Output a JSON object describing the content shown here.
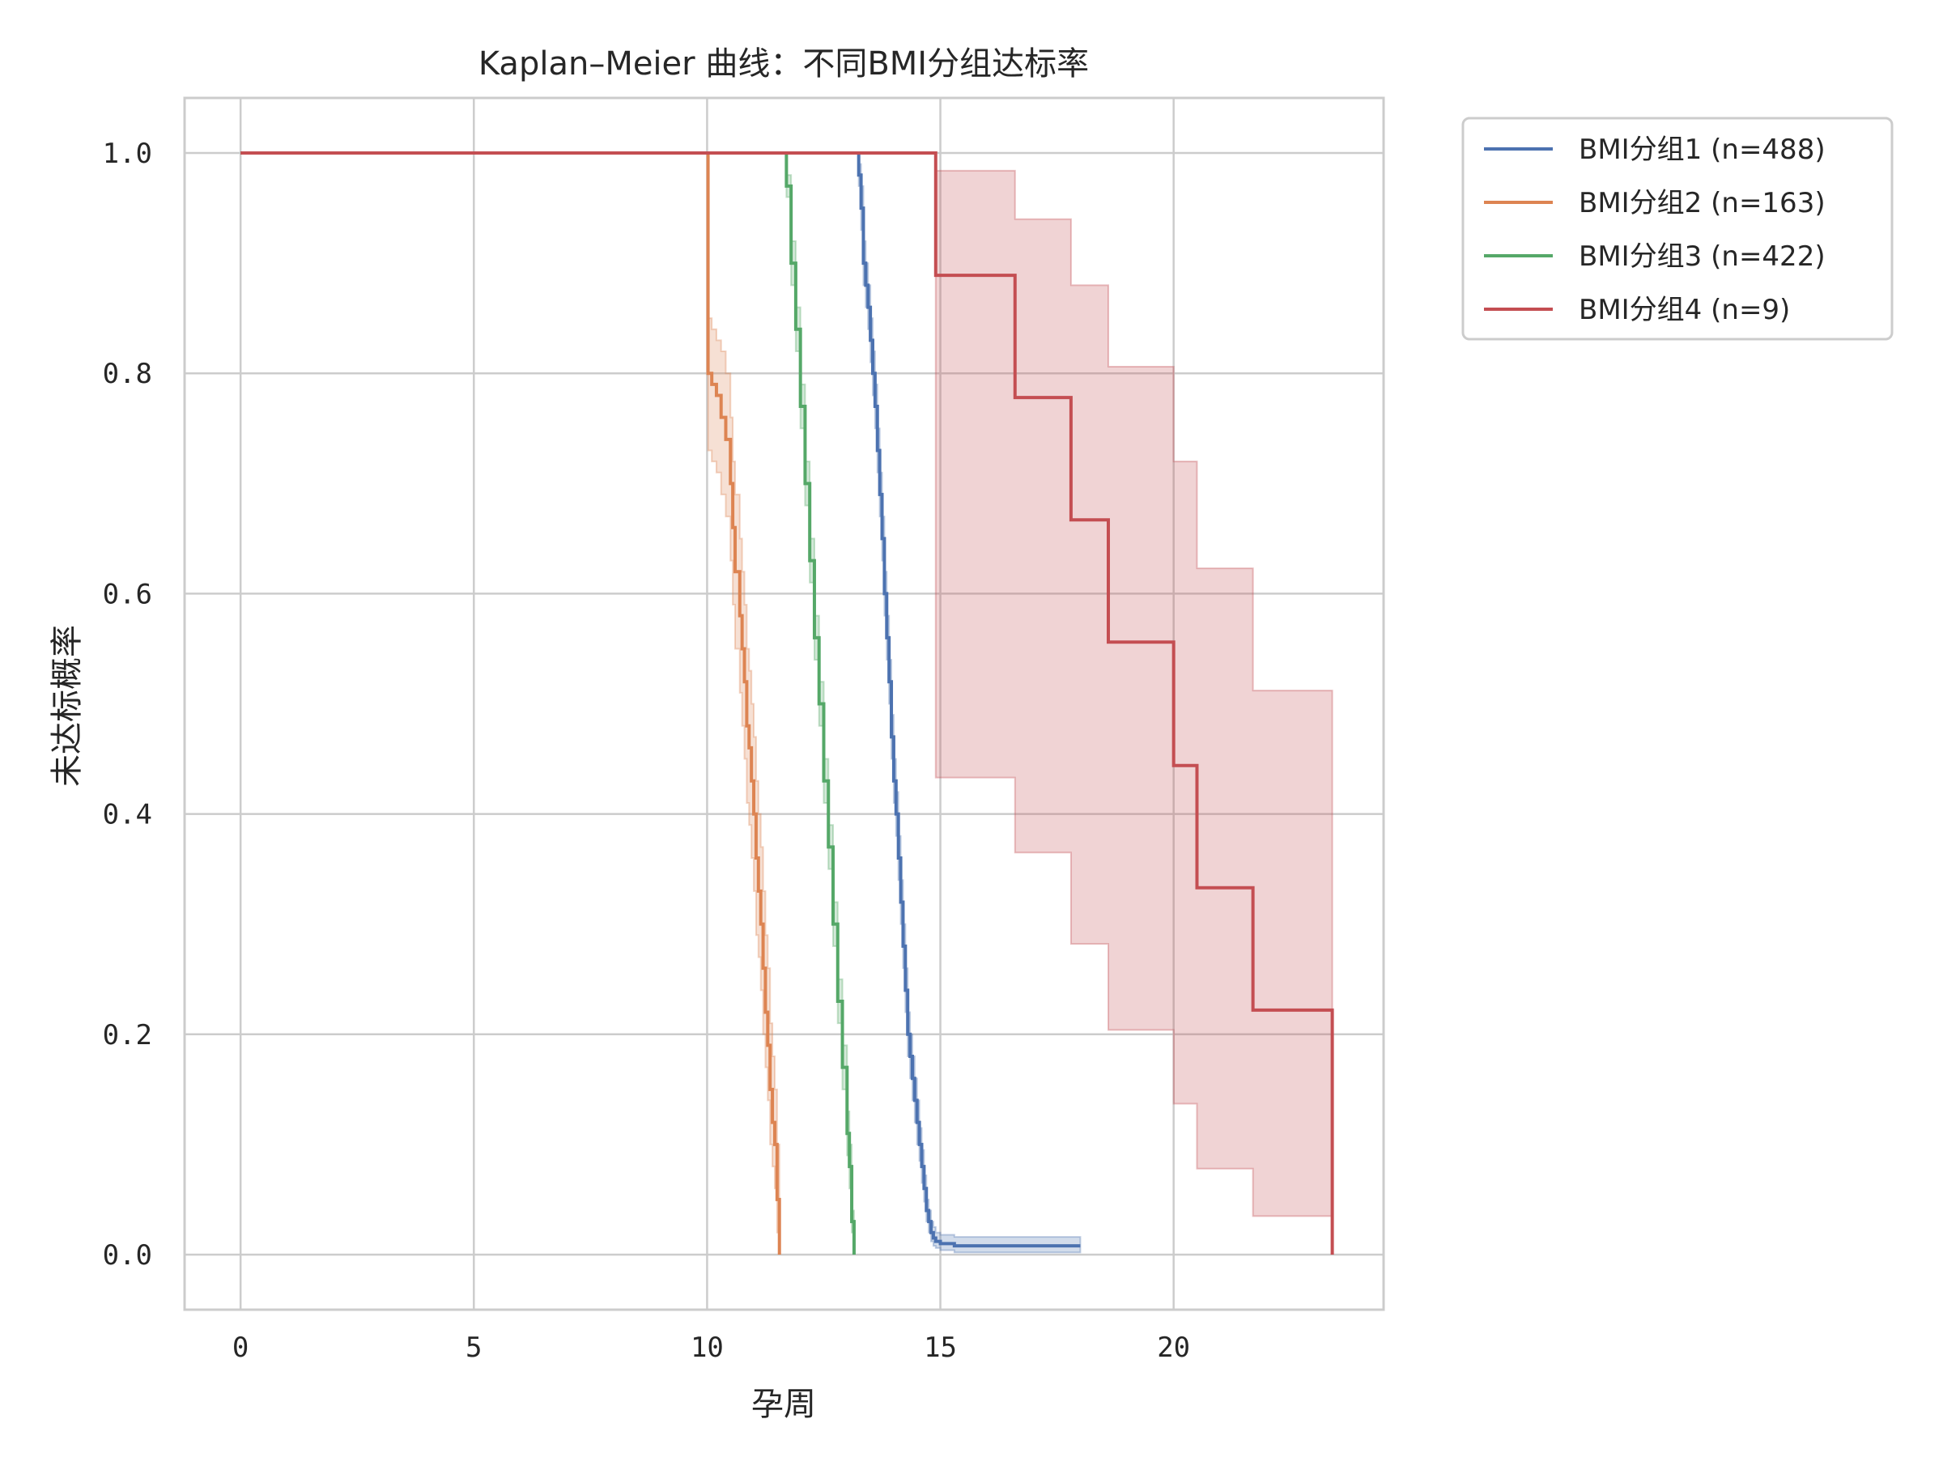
{
  "chart_data": {
    "type": "line",
    "title": "Kaplan–Meier 曲线：不同BMI分组达标率",
    "xlabel": "孕周",
    "ylabel": "未达标概率",
    "xlim": [
      -1.2,
      24.5
    ],
    "ylim": [
      -0.05,
      1.05
    ],
    "x_ticks": [
      "0",
      "5",
      "10",
      "15",
      "20"
    ],
    "y_ticks": [
      "0.0",
      "0.2",
      "0.4",
      "0.6",
      "0.8",
      "1.0"
    ],
    "grid": true,
    "legend_position": "outside-top-right",
    "colors": {
      "BMI分组1": "#4c72b0",
      "BMI分组2": "#dd8452",
      "BMI分组3": "#55a868",
      "BMI分组4": "#c44e52"
    },
    "series": [
      {
        "name": "BMI分组1 (n=488)",
        "color": "#4c72b0",
        "x": [
          0,
          13.2,
          13.25,
          13.3,
          13.35,
          13.4,
          13.45,
          13.5,
          13.55,
          13.6,
          13.65,
          13.7,
          13.75,
          13.8,
          13.85,
          13.9,
          13.95,
          14.0,
          14.05,
          14.1,
          14.15,
          14.2,
          14.25,
          14.3,
          14.35,
          14.4,
          14.45,
          14.5,
          14.55,
          14.6,
          14.65,
          14.7,
          14.75,
          14.8,
          14.85,
          14.9,
          15.0,
          15.3,
          18.0
        ],
        "y": [
          1.0,
          1.0,
          0.98,
          0.95,
          0.9,
          0.88,
          0.86,
          0.83,
          0.8,
          0.77,
          0.73,
          0.69,
          0.65,
          0.6,
          0.56,
          0.52,
          0.47,
          0.43,
          0.4,
          0.36,
          0.32,
          0.28,
          0.24,
          0.2,
          0.18,
          0.16,
          0.14,
          0.12,
          0.1,
          0.08,
          0.06,
          0.04,
          0.03,
          0.02,
          0.015,
          0.012,
          0.01,
          0.008,
          0.008
        ],
        "ci_lower": [
          1.0,
          1.0,
          0.97,
          0.93,
          0.88,
          0.86,
          0.84,
          0.81,
          0.78,
          0.75,
          0.71,
          0.67,
          0.63,
          0.58,
          0.54,
          0.5,
          0.45,
          0.41,
          0.38,
          0.34,
          0.3,
          0.26,
          0.22,
          0.18,
          0.16,
          0.14,
          0.12,
          0.1,
          0.085,
          0.065,
          0.048,
          0.03,
          0.02,
          0.012,
          0.008,
          0.006,
          0.004,
          0.002,
          0.002
        ],
        "ci_upper": [
          1.0,
          1.0,
          0.99,
          0.97,
          0.92,
          0.9,
          0.88,
          0.85,
          0.82,
          0.79,
          0.75,
          0.71,
          0.67,
          0.62,
          0.58,
          0.54,
          0.49,
          0.45,
          0.42,
          0.38,
          0.34,
          0.3,
          0.26,
          0.22,
          0.2,
          0.18,
          0.16,
          0.14,
          0.115,
          0.095,
          0.072,
          0.05,
          0.04,
          0.03,
          0.025,
          0.02,
          0.018,
          0.016,
          0.016
        ]
      },
      {
        "name": "BMI分组2 (n=163)",
        "color": "#dd8452",
        "x": [
          0,
          10.0,
          10.02,
          10.1,
          10.2,
          10.3,
          10.4,
          10.5,
          10.55,
          10.6,
          10.7,
          10.75,
          10.8,
          10.85,
          10.9,
          10.95,
          11.0,
          11.05,
          11.1,
          11.15,
          11.2,
          11.25,
          11.3,
          11.35,
          11.4,
          11.45,
          11.5,
          11.55
        ],
        "y": [
          1.0,
          1.0,
          0.8,
          0.79,
          0.78,
          0.76,
          0.74,
          0.7,
          0.66,
          0.62,
          0.58,
          0.55,
          0.52,
          0.48,
          0.46,
          0.43,
          0.4,
          0.36,
          0.33,
          0.3,
          0.26,
          0.22,
          0.19,
          0.15,
          0.12,
          0.1,
          0.05,
          0.0
        ],
        "ci_lower": [
          1.0,
          1.0,
          0.73,
          0.72,
          0.71,
          0.69,
          0.67,
          0.63,
          0.59,
          0.55,
          0.51,
          0.48,
          0.45,
          0.41,
          0.39,
          0.36,
          0.33,
          0.29,
          0.27,
          0.24,
          0.2,
          0.17,
          0.14,
          0.1,
          0.08,
          0.06,
          0.02,
          0.0
        ],
        "ci_upper": [
          1.0,
          1.0,
          0.85,
          0.84,
          0.83,
          0.82,
          0.8,
          0.76,
          0.72,
          0.69,
          0.65,
          0.62,
          0.59,
          0.55,
          0.53,
          0.5,
          0.47,
          0.43,
          0.4,
          0.37,
          0.33,
          0.29,
          0.26,
          0.21,
          0.18,
          0.15,
          0.1,
          0.05
        ]
      },
      {
        "name": "BMI分组3 (n=422)",
        "color": "#55a868",
        "x": [
          0,
          11.6,
          11.7,
          11.8,
          11.9,
          12.0,
          12.1,
          12.2,
          12.3,
          12.4,
          12.5,
          12.6,
          12.7,
          12.8,
          12.9,
          13.0,
          13.05,
          13.1,
          13.15
        ],
        "y": [
          1.0,
          1.0,
          0.97,
          0.9,
          0.84,
          0.77,
          0.7,
          0.63,
          0.56,
          0.5,
          0.43,
          0.37,
          0.3,
          0.23,
          0.17,
          0.11,
          0.08,
          0.03,
          0.0
        ],
        "ci_lower": [
          1.0,
          1.0,
          0.96,
          0.88,
          0.82,
          0.75,
          0.68,
          0.61,
          0.54,
          0.48,
          0.41,
          0.35,
          0.28,
          0.21,
          0.15,
          0.09,
          0.06,
          0.02,
          0.0
        ],
        "ci_upper": [
          1.0,
          1.0,
          0.98,
          0.92,
          0.86,
          0.79,
          0.72,
          0.65,
          0.58,
          0.52,
          0.45,
          0.39,
          0.32,
          0.25,
          0.19,
          0.13,
          0.1,
          0.04,
          0.0
        ]
      },
      {
        "name": "BMI分组4 (n=9)",
        "color": "#c44e52",
        "x": [
          0,
          14.9,
          16.6,
          17.8,
          18.6,
          20.0,
          20.5,
          21.7,
          23.4
        ],
        "y": [
          1.0,
          0.889,
          0.778,
          0.667,
          0.556,
          0.444,
          0.333,
          0.222,
          0.0
        ],
        "ci_lower": [
          1.0,
          0.433,
          0.365,
          0.282,
          0.204,
          0.137,
          0.078,
          0.035,
          0.0
        ],
        "ci_upper": [
          1.0,
          0.984,
          0.94,
          0.88,
          0.806,
          0.72,
          0.623,
          0.512,
          0.0
        ],
        "x_end": 23.4
      }
    ]
  }
}
